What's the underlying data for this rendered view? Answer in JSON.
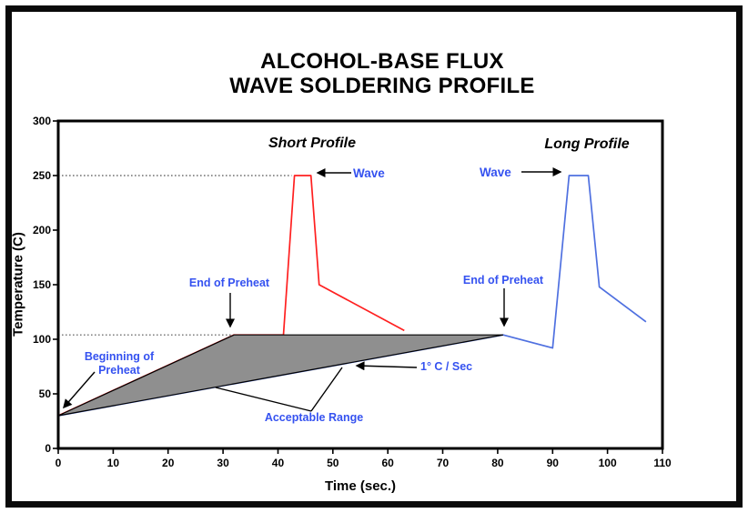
{
  "title": {
    "line1": "ALCOHOL-BASE FLUX",
    "line2": "WAVE SOLDERING PROFILE"
  },
  "colors": {
    "short_profile": "#ff2020",
    "long_profile": "#4f70e0",
    "annotation": "#3552f0",
    "acceptable_fill": "#8f8f8f",
    "axis": "#000000"
  },
  "annotations": {
    "short_profile_label": "Short Profile",
    "long_profile_label": "Long Profile",
    "wave_short": "Wave",
    "wave_long": "Wave",
    "end_of_preheat_short": "End of Preheat",
    "end_of_preheat_long": "End of Preheat",
    "beginning_of_preheat": "Beginning of Preheat",
    "rate_label": "1° C / Sec",
    "acceptable_range": "Acceptable Range"
  },
  "chart_data": {
    "type": "line",
    "title": "ALCOHOL-BASE FLUX WAVE SOLDERING PROFILE",
    "xlabel": "Time (sec.)",
    "ylabel": "Temperature (C)",
    "xlim": [
      0,
      110
    ],
    "ylim": [
      0,
      300
    ],
    "x_ticks": [
      0,
      10,
      20,
      30,
      40,
      50,
      60,
      70,
      80,
      90,
      100,
      110
    ],
    "y_ticks": [
      0,
      50,
      100,
      150,
      200,
      250,
      300
    ],
    "legend": "none (profiles labeled inline: Short Profile red, Long Profile blue)",
    "grid": "off; dotted reference lines only",
    "series": [
      {
        "name": "Short Profile",
        "color_key": "short_profile",
        "points": [
          [
            0,
            30
          ],
          [
            32,
            104
          ],
          [
            41,
            104
          ],
          [
            43,
            250
          ],
          [
            46,
            250
          ],
          [
            47.5,
            150
          ],
          [
            63,
            108
          ]
        ],
        "notes": "preheat ramp 0-32s to ~104C, wave peak 250C at 43-46s, quench to 150C then cool to ~108C at 63s"
      },
      {
        "name": "Long Profile",
        "color_key": "long_profile",
        "points": [
          [
            0,
            30
          ],
          [
            81,
            104
          ],
          [
            90,
            92
          ],
          [
            93,
            250
          ],
          [
            96.5,
            250
          ],
          [
            98.5,
            148
          ],
          [
            107,
            116
          ]
        ],
        "notes": "1C/sec preheat 0-81s to ~104C, slight dip to 92C, wave peak 250C at 93-96.5s, quench to 148C then cool to ~116C at 107s"
      }
    ],
    "acceptable_range_polygon": [
      [
        0,
        30
      ],
      [
        32,
        104
      ],
      [
        81,
        104
      ]
    ],
    "reference_lines": [
      {
        "y": 250,
        "x_from": 0,
        "x_to": 42.5,
        "style": "dotted"
      },
      {
        "y": 104,
        "x_from": 0,
        "x_to": 32,
        "style": "dotted"
      }
    ]
  }
}
